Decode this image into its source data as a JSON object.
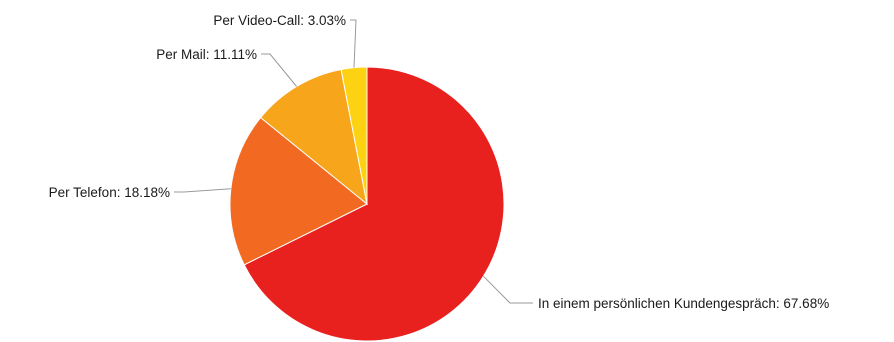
{
  "chart_data": {
    "type": "pie",
    "title": "",
    "start_angle_deg": 0,
    "direction": "clockwise",
    "slices": [
      {
        "label": "In einem persönlichen Kundengespräch",
        "value": 67.68,
        "display": "In einem persönlichen Kundengespräch: 67.68%",
        "color": "#e8211f"
      },
      {
        "label": "Per Telefon",
        "value": 18.18,
        "display": "Per Telefon: 18.18%",
        "color": "#f26a22"
      },
      {
        "label": "Per Mail",
        "value": 11.11,
        "display": "Per Mail: 11.11%",
        "color": "#f7a51b"
      },
      {
        "label": "Per Video-Call",
        "value": 3.03,
        "display": "Per Video-Call: 3.03%",
        "color": "#fcd213"
      }
    ]
  }
}
